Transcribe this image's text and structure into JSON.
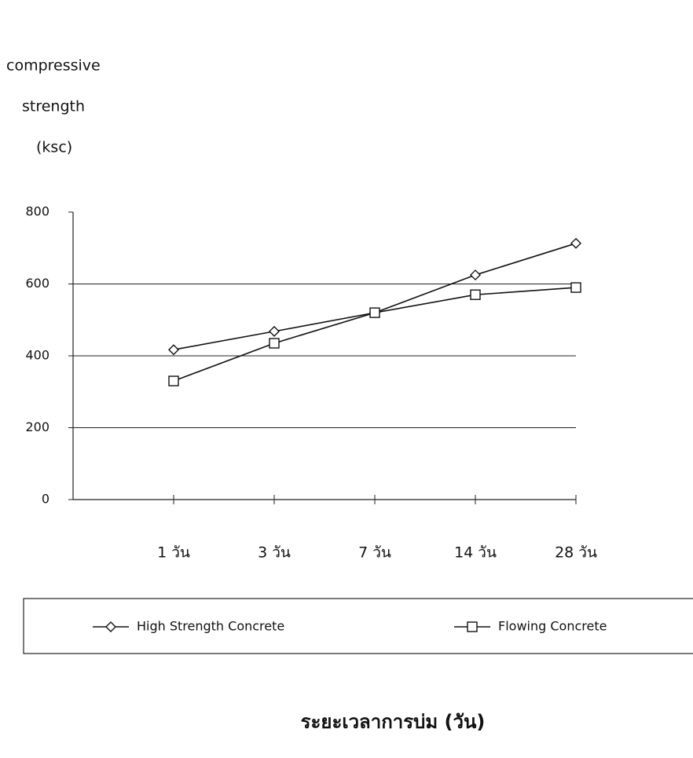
{
  "chart_data": {
    "type": "line",
    "ylabel": [
      "compressive",
      "strength",
      "(ksc)"
    ],
    "xlabel": "ระยะเวลาการบ่ม (วัน)",
    "categories": [
      "1 วัน",
      "3 วัน",
      "7 วัน",
      "14 วัน",
      "28 วัน"
    ],
    "series": [
      {
        "name": "High Strength Concrete",
        "color": "#111111",
        "marker": "diamond",
        "values": [
          417,
          468,
          520,
          625,
          713
        ]
      },
      {
        "name": "Flowing Concrete",
        "color": "#111111",
        "marker": "square",
        "values": [
          330,
          435,
          520,
          570,
          590
        ]
      }
    ],
    "ylim": [
      0,
      800
    ],
    "yticks": [
      0,
      200,
      400,
      600,
      800
    ],
    "grid": true,
    "legend": "bottom"
  }
}
